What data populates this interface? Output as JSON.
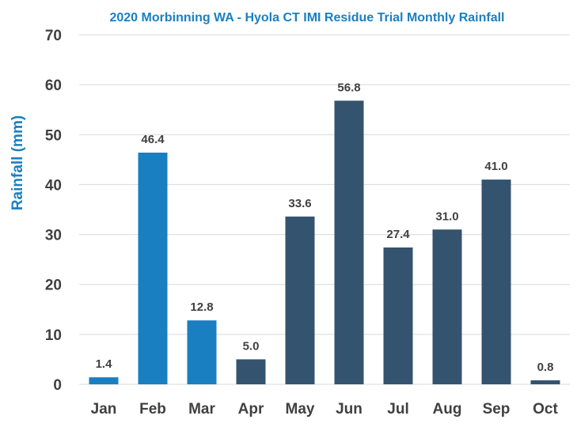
{
  "chart_data": {
    "type": "bar",
    "title": "2020 Morbinning WA - Hyola CT IMI Residue Trial Monthly Rainfall",
    "xlabel": "",
    "ylabel": "Rainfall (mm)",
    "ylim": [
      0,
      70
    ],
    "yticks": [
      "0",
      "10",
      "20",
      "30",
      "40",
      "50",
      "60",
      "70"
    ],
    "grid": true,
    "categories": [
      "Jan",
      "Feb",
      "Mar",
      "Apr",
      "May",
      "Jun",
      "Jul",
      "Aug",
      "Sep",
      "Oct"
    ],
    "values": [
      1.4,
      46.4,
      12.8,
      5.0,
      33.6,
      56.8,
      27.4,
      31.0,
      41.0,
      0.8
    ],
    "value_labels": [
      "1.4",
      "46.4",
      "12.8",
      "5.0",
      "33.6",
      "56.8",
      "27.4",
      "31.0",
      "41.0",
      "0.8"
    ],
    "bar_colors": [
      "#1a7fc1",
      "#1a7fc1",
      "#1a7fc1",
      "#34536f",
      "#34536f",
      "#34536f",
      "#34536f",
      "#34536f",
      "#34536f",
      "#34536f"
    ]
  },
  "colors": {
    "title": "#1a7fc1",
    "ylabel": "#1a7fc1",
    "tick_text": "#404040",
    "value_text": "#404040",
    "grid": "#d9d9d9"
  }
}
